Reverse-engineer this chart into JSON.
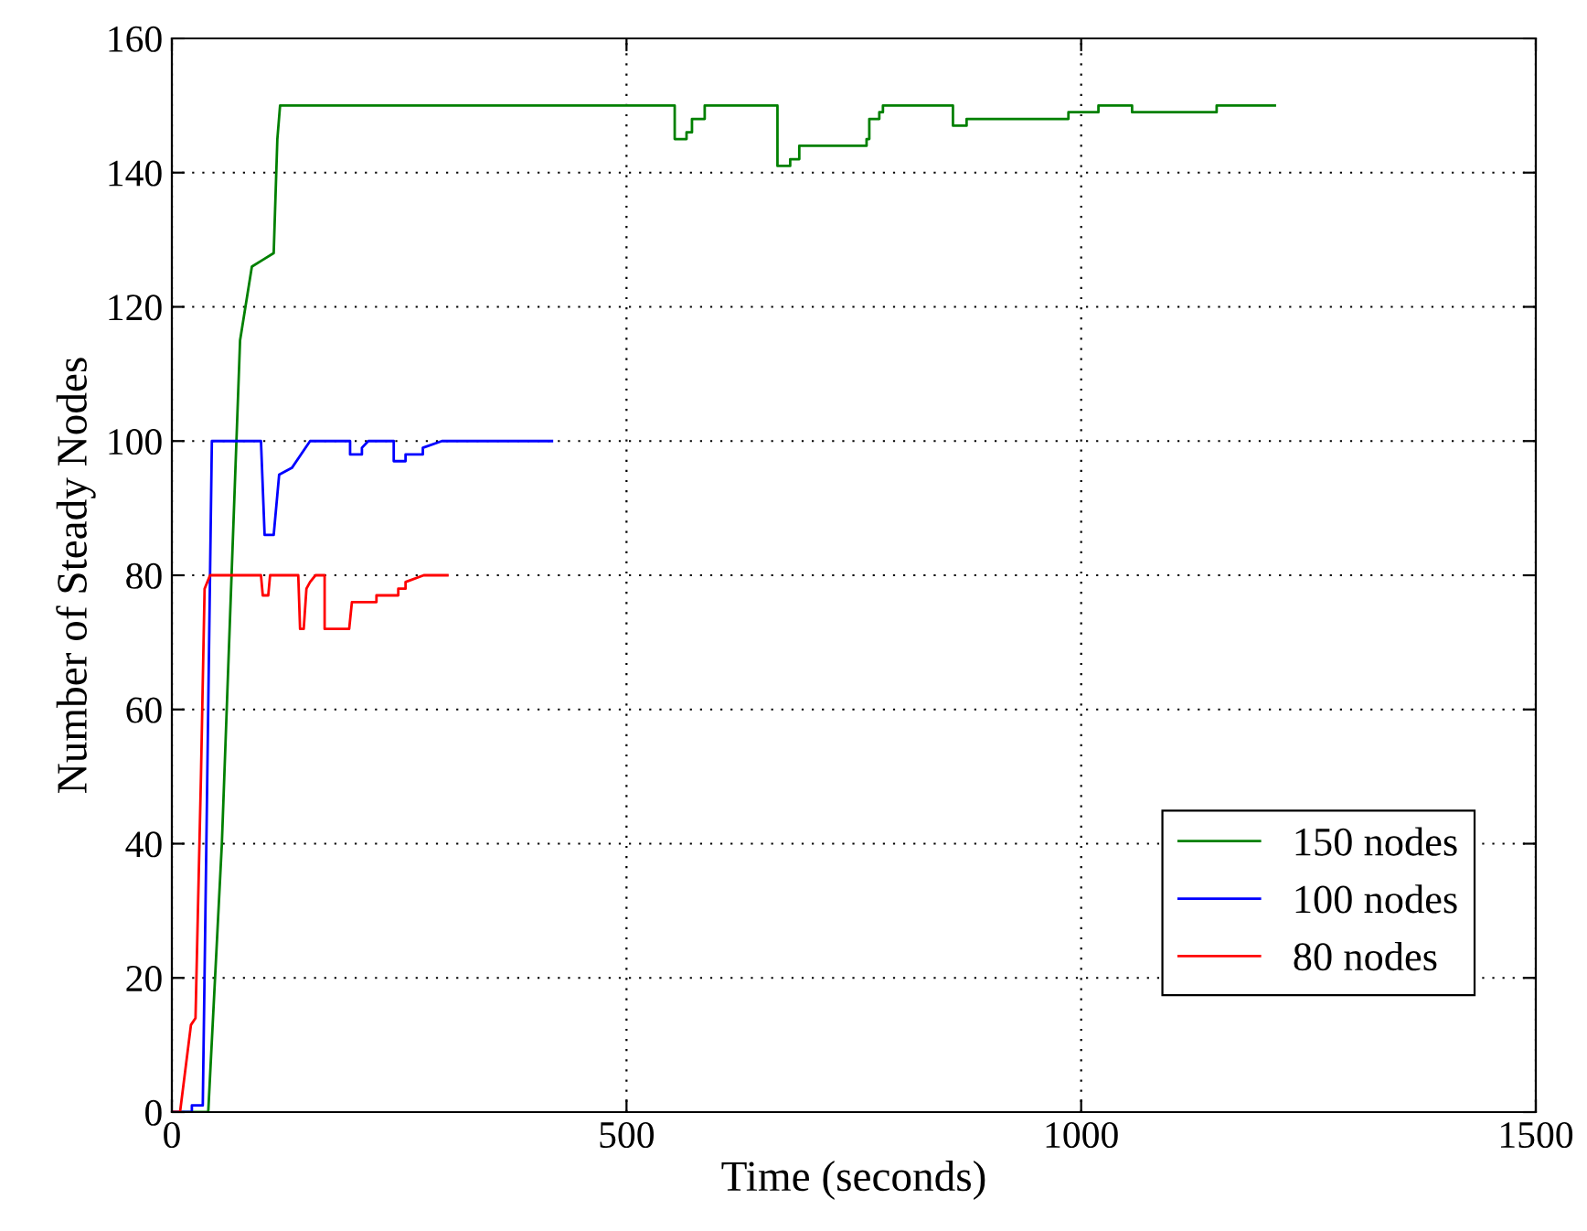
{
  "chart_data": {
    "type": "line",
    "xlabel": "Time (seconds)",
    "ylabel": "Number of Steady Nodes",
    "xlim": [
      0,
      1500
    ],
    "ylim": [
      0,
      160
    ],
    "xticks": [
      0,
      500,
      1000,
      1500
    ],
    "yticks": [
      0,
      20,
      40,
      60,
      80,
      100,
      120,
      140,
      160
    ],
    "grid": true,
    "legend": "bottom right",
    "line_style": "solid",
    "marker": "none",
    "series": [
      {
        "name": "150 nodes",
        "color": "#008000",
        "x": [
          0,
          40,
          55,
          75,
          88,
          88,
          100,
          100,
          112,
          116,
          119,
          553,
          553,
          566,
          566,
          572,
          572,
          586,
          586,
          666,
          666,
          680,
          680,
          690,
          690,
          764,
          764,
          767,
          767,
          778,
          778,
          782,
          782,
          859,
          859,
          874,
          874,
          986,
          986,
          1019,
          1019,
          1056,
          1056,
          1149,
          1149,
          1213
        ],
        "values": [
          0,
          0,
          40,
          115,
          126,
          126,
          127,
          127,
          128,
          145,
          150,
          150,
          145,
          145,
          146,
          146,
          148,
          148,
          150,
          150,
          141,
          141,
          142,
          142,
          144,
          144,
          145,
          145,
          148,
          148,
          149,
          149,
          150,
          150,
          147,
          147,
          148,
          148,
          149,
          149,
          150,
          150,
          149,
          149,
          150,
          150
        ]
      },
      {
        "name": "100 nodes",
        "color": "#0000ff",
        "x": [
          0,
          22,
          22,
          34,
          34,
          44,
          98,
          102,
          112,
          116,
          118,
          118,
          132,
          132,
          152,
          196,
          196,
          209,
          209,
          216,
          244,
          244,
          257,
          257,
          276,
          276,
          297,
          418
        ],
        "values": [
          0,
          0,
          1,
          1,
          1,
          100,
          100,
          86,
          86,
          92,
          95,
          95,
          96,
          96,
          100,
          100,
          98,
          98,
          99,
          100,
          100,
          97,
          97,
          98,
          98,
          99,
          100,
          100
        ]
      },
      {
        "name": "80 nodes",
        "color": "#ff0000",
        "x": [
          0,
          9,
          21,
          26,
          32,
          36,
          42,
          98,
          100,
          106,
          108,
          139,
          141,
          145,
          148,
          152,
          158,
          168,
          168,
          195,
          198,
          225,
          225,
          249,
          249,
          257,
          257,
          277,
          303
        ],
        "values": [
          0,
          0,
          13,
          14,
          50,
          78,
          80,
          80,
          77,
          77,
          80,
          80,
          72,
          72,
          78,
          79,
          80,
          80,
          72,
          72,
          76,
          76,
          77,
          77,
          78,
          78,
          79,
          80,
          80
        ]
      }
    ]
  }
}
